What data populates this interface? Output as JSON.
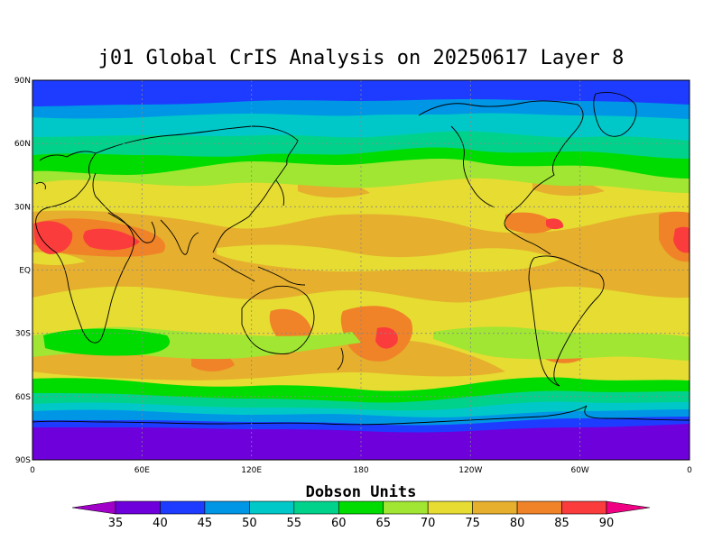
{
  "title": "j01 Global CrIS Analysis on 20250617 Layer 8",
  "map": {
    "lat_ticks": [
      "90N",
      "60N",
      "30N",
      "EQ",
      "30S",
      "60S",
      "90S"
    ],
    "lon_ticks": [
      "0",
      "60E",
      "120E",
      "180",
      "120W",
      "60W",
      "0"
    ],
    "lat_values": [
      90,
      60,
      30,
      0,
      -30,
      -60,
      -90
    ],
    "lon_values": [
      0,
      60,
      120,
      180,
      240,
      300,
      360
    ],
    "grid": "dotted",
    "ocean_bg": "#d8c635"
  },
  "colorbar": {
    "title": "Dobson Units",
    "levels": [
      35,
      40,
      45,
      50,
      55,
      60,
      65,
      70,
      75,
      80,
      85,
      90
    ],
    "labels": [
      "35",
      "40",
      "45",
      "50",
      "55",
      "60",
      "65",
      "70",
      "75",
      "80",
      "85",
      "90"
    ],
    "colors": [
      "#a000c8",
      "#6e00dc",
      "#1e3cff",
      "#0096e6",
      "#00c8c8",
      "#00d28c",
      "#00dc00",
      "#a0e632",
      "#e6dc32",
      "#e6af2d",
      "#f08228",
      "#fa3c3c",
      "#f00082"
    ]
  },
  "bands": [
    {
      "name": "south-polar",
      "color": "#6e00dc"
    },
    {
      "name": "south-sub-polar",
      "color": "#1e3cff"
    },
    {
      "name": "south-high",
      "color": "#0096e6"
    },
    {
      "name": "south-mid",
      "color": "#00c8c8"
    },
    {
      "name": "south-green",
      "color": "#00dc00"
    },
    {
      "name": "north-polar",
      "color": "#1e3cff"
    },
    {
      "name": "north-high",
      "color": "#0096e6"
    },
    {
      "name": "north-mid",
      "color": "#00c8c8"
    },
    {
      "name": "north-green",
      "color": "#00dc00"
    },
    {
      "name": "north-lime",
      "color": "#a0e632"
    }
  ]
}
